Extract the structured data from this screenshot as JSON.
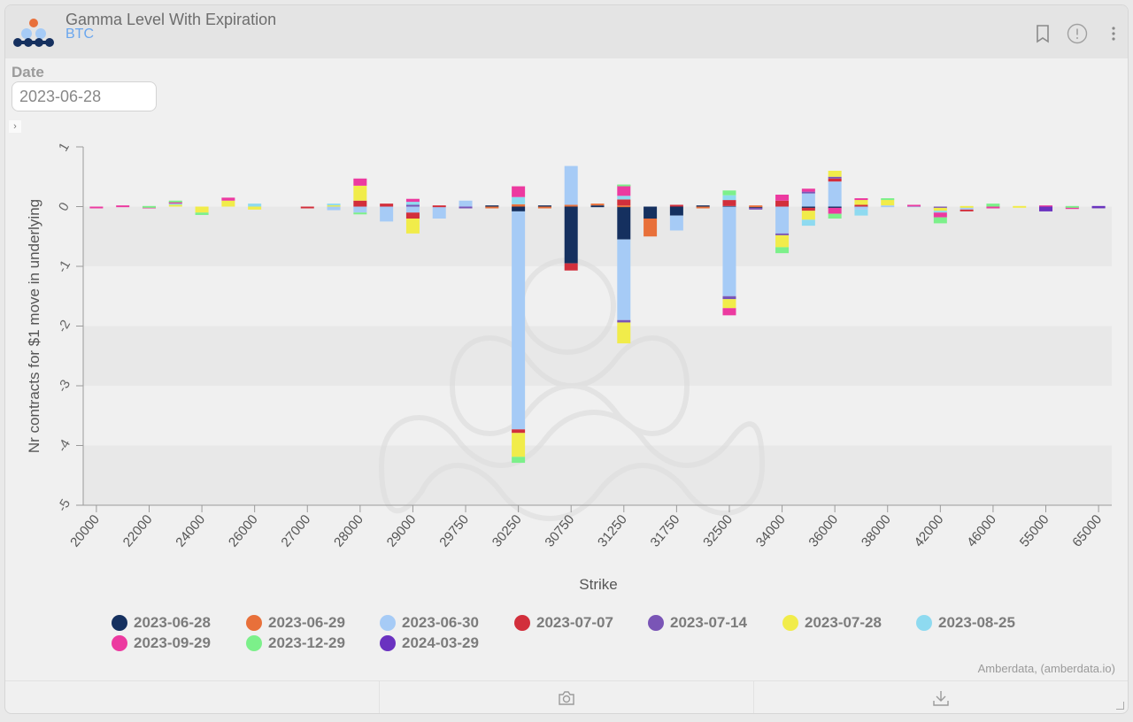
{
  "header": {
    "title": "Gamma Level With Expiration",
    "subtitle": "BTC",
    "icons": [
      "bookmark-icon",
      "info-icon",
      "more-vertical-icon"
    ]
  },
  "filters": {
    "date_label": "Date",
    "date_value": "2023-06-28"
  },
  "credits": "Amberdata, (amberdata.io)",
  "toolbar": {
    "icons": [
      "camera-icon",
      "download-icon"
    ]
  },
  "legend": [
    {
      "label": "2023-06-28",
      "color": "#15305f"
    },
    {
      "label": "2023-06-29",
      "color": "#e8703a"
    },
    {
      "label": "2023-06-30",
      "color": "#a6cbf6"
    },
    {
      "label": "2023-07-07",
      "color": "#d22f3c"
    },
    {
      "label": "2023-07-14",
      "color": "#7a55b6"
    },
    {
      "label": "2023-07-28",
      "color": "#f1ec4a"
    },
    {
      "label": "2023-08-25",
      "color": "#8edaf0"
    },
    {
      "label": "2023-09-29",
      "color": "#ec3aa0"
    },
    {
      "label": "2023-12-29",
      "color": "#7cf08a"
    },
    {
      "label": "2024-03-29",
      "color": "#6a32c0"
    }
  ],
  "chart_data": {
    "type": "bar",
    "stacked": true,
    "xlabel": "Strike",
    "ylabel": "Nr contracts for $1 move in underlying",
    "ylim": [
      -5,
      1
    ],
    "yticks": [
      "1",
      "0",
      "-1",
      "-2",
      "-3",
      "-4",
      "-5"
    ],
    "ytick_values": [
      1,
      0,
      -1,
      -2,
      -3,
      -4,
      -5
    ],
    "grid_bands": true,
    "legend_position": "bottom",
    "categories": [
      "20000",
      "",
      "22000",
      "",
      "24000",
      "",
      "26000",
      "",
      "27000",
      "",
      "28000",
      "",
      "29000",
      "",
      "29750",
      "",
      "30250",
      "",
      "30750",
      "",
      "31250",
      "",
      "31750",
      "",
      "32500",
      "",
      "34000",
      "",
      "36000",
      "",
      "38000",
      "",
      "42000",
      "",
      "46000",
      "",
      "55000",
      "",
      "65000"
    ],
    "series": [
      {
        "name": "2023-06-28",
        "values": [
          0,
          0,
          0,
          0,
          0,
          0,
          0,
          0,
          0,
          0,
          0,
          0,
          0,
          0,
          0,
          0.02,
          -0.08,
          0.02,
          -0.95,
          0.02,
          -0.55,
          -0.2,
          -0.15,
          0.02,
          0.01,
          -0.02,
          0,
          -0.02,
          -0.02,
          0.01,
          0,
          0,
          0,
          0,
          0,
          0,
          0,
          0,
          0
        ]
      },
      {
        "name": "2023-06-29",
        "values": [
          0,
          0,
          0,
          0,
          0,
          0,
          0,
          0,
          0,
          0,
          0,
          0,
          0,
          0,
          0,
          -0.02,
          0.04,
          -0.02,
          0.03,
          0.03,
          0.02,
          -0.3,
          0,
          -0.02,
          0,
          0.02,
          0,
          0,
          0,
          0,
          0,
          0,
          0,
          0,
          0,
          0,
          0,
          0,
          0
        ]
      },
      {
        "name": "2023-06-30",
        "values": [
          0,
          0,
          0,
          0,
          0,
          0,
          0,
          0,
          0,
          -0.06,
          -0.1,
          -0.25,
          -0.1,
          -0.2,
          0.1,
          0,
          -3.65,
          0,
          0.65,
          0,
          -1.35,
          0,
          -0.25,
          0,
          -1.5,
          0,
          -0.45,
          0.22,
          0.42,
          -0.05,
          0.02,
          0,
          0,
          -0.05,
          0,
          0,
          0,
          0,
          0
        ]
      },
      {
        "name": "2023-07-07",
        "values": [
          0,
          0,
          0,
          0,
          0,
          0,
          0,
          0,
          -0.01,
          0,
          0.1,
          0.05,
          -0.1,
          0.02,
          0,
          0,
          -0.06,
          0,
          -0.12,
          0,
          0.1,
          0,
          0.03,
          0,
          0.1,
          0,
          0.1,
          -0.05,
          0.05,
          0.02,
          0,
          0,
          0,
          -0.02,
          0,
          0,
          0,
          0,
          0
        ]
      },
      {
        "name": "2023-07-14",
        "values": [
          0,
          0,
          0,
          0,
          0,
          0,
          0,
          0,
          0,
          0,
          0,
          0,
          0.03,
          0,
          -0.02,
          0,
          0,
          0,
          0,
          0,
          -0.04,
          0,
          0,
          0,
          -0.05,
          -0.01,
          -0.03,
          0.03,
          0.03,
          0,
          0,
          0,
          -0.02,
          0,
          0,
          0,
          0,
          0,
          -0.01
        ]
      },
      {
        "name": "2023-07-28",
        "values": [
          0,
          0,
          0,
          0.04,
          -0.1,
          0.1,
          -0.05,
          0,
          0,
          0.03,
          0.25,
          0,
          -0.25,
          0,
          0,
          0,
          -0.4,
          0,
          0,
          0,
          -0.35,
          0,
          0,
          0,
          -0.15,
          0,
          -0.2,
          -0.15,
          0.1,
          0.1,
          0.1,
          0,
          -0.05,
          0.01,
          0,
          0.01,
          0,
          0,
          0
        ]
      },
      {
        "name": "2023-08-25",
        "values": [
          0,
          0,
          0,
          0.02,
          0,
          0,
          0.05,
          0,
          0,
          0.02,
          0,
          0,
          0.05,
          0,
          0,
          0,
          0.12,
          0,
          0,
          0,
          0.06,
          0,
          0,
          0,
          0.08,
          0,
          0,
          -0.1,
          0,
          -0.1,
          0,
          0.02,
          -0.03,
          0,
          0,
          0,
          0,
          0,
          0
        ]
      },
      {
        "name": "2023-09-29",
        "values": [
          -0.02,
          0.02,
          -0.01,
          0.02,
          0,
          0.05,
          0,
          0,
          0,
          0,
          0.12,
          0,
          0.05,
          0,
          0,
          0,
          0.18,
          0,
          0,
          0,
          0.18,
          0,
          0,
          0,
          -0.12,
          0,
          0.1,
          0.05,
          -0.1,
          0.01,
          0,
          0.01,
          -0.08,
          0,
          -0.03,
          0,
          0.02,
          -0.04,
          0
        ]
      },
      {
        "name": "2023-12-29",
        "values": [
          0,
          0,
          0.01,
          0.02,
          -0.04,
          0,
          0,
          0,
          0,
          0,
          -0.03,
          0,
          0,
          0,
          0,
          0,
          -0.1,
          0,
          0,
          0,
          0.01,
          0,
          0,
          0,
          0.08,
          0,
          -0.1,
          0,
          -0.08,
          0,
          0.02,
          0,
          -0.1,
          0,
          0.05,
          0,
          0,
          0.01,
          0
        ]
      },
      {
        "name": "2024-03-29",
        "values": [
          0,
          0,
          0,
          0,
          0,
          0,
          0,
          0,
          0,
          0,
          0,
          0,
          0,
          0,
          0,
          0,
          0,
          0,
          0,
          0,
          0,
          0,
          0,
          0,
          0,
          0,
          0,
          0,
          0,
          0,
          0,
          0,
          0,
          0,
          0,
          0,
          -0.08,
          0,
          0.01
        ]
      }
    ]
  }
}
